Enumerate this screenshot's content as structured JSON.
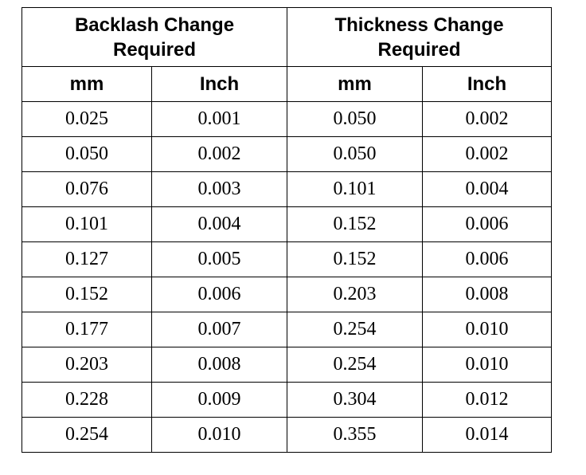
{
  "table": {
    "groups": [
      "Backlash Change\nRequired",
      "Thickness Change\nRequired"
    ],
    "units": [
      "mm",
      "Inch",
      "mm",
      "Inch"
    ],
    "rows": [
      [
        "0.025",
        "0.001",
        "0.050",
        "0.002"
      ],
      [
        "0.050",
        "0.002",
        "0.050",
        "0.002"
      ],
      [
        "0.076",
        "0.003",
        "0.101",
        "0.004"
      ],
      [
        "0.101",
        "0.004",
        "0.152",
        "0.006"
      ],
      [
        "0.127",
        "0.005",
        "0.152",
        "0.006"
      ],
      [
        "0.152",
        "0.006",
        "0.203",
        "0.008"
      ],
      [
        "0.177",
        "0.007",
        "0.254",
        "0.010"
      ],
      [
        "0.203",
        "0.008",
        "0.254",
        "0.010"
      ],
      [
        "0.228",
        "0.009",
        "0.304",
        "0.012"
      ],
      [
        "0.254",
        "0.010",
        "0.355",
        "0.014"
      ]
    ]
  }
}
